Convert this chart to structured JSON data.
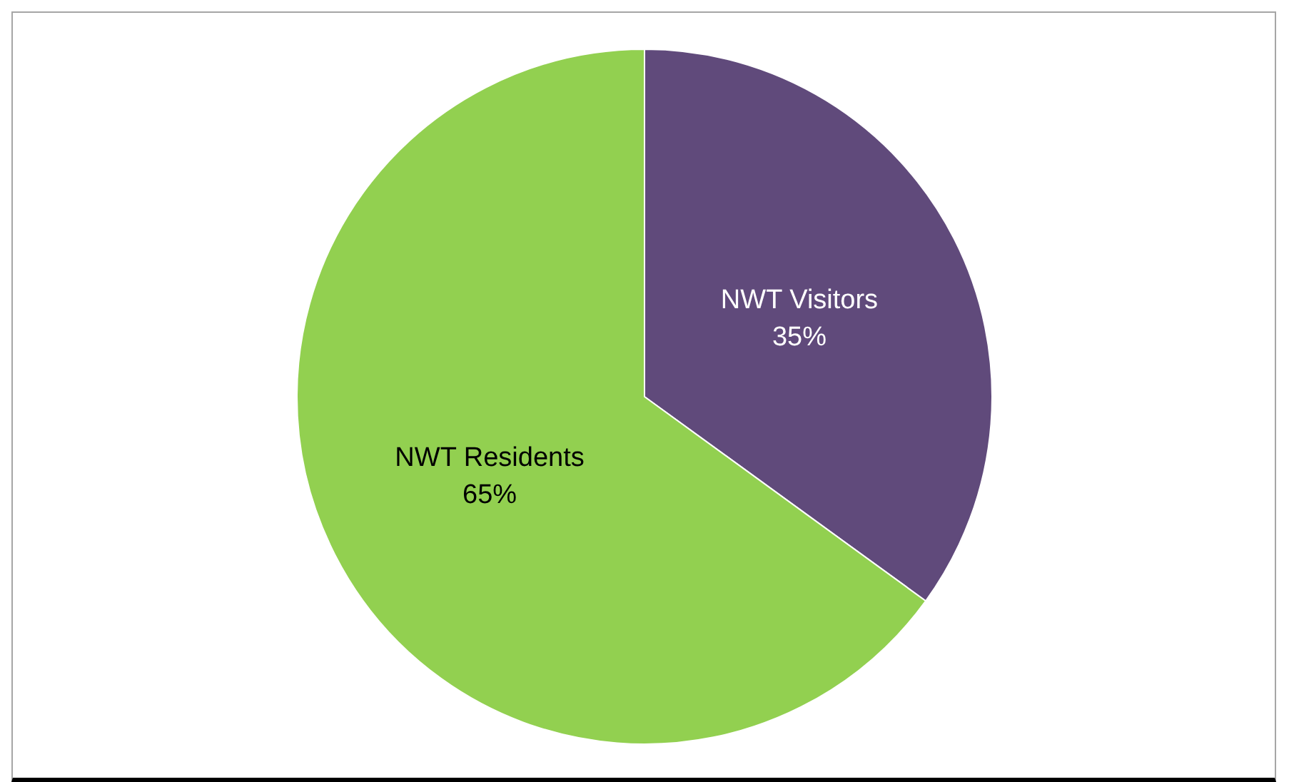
{
  "chart_data": {
    "type": "pie",
    "categories": [
      "NWT Visitors",
      "NWT Residents"
    ],
    "values": [
      35,
      65
    ],
    "colors": [
      "#604a7b",
      "#92d050"
    ],
    "value_labels": [
      "35%",
      "65%"
    ]
  }
}
